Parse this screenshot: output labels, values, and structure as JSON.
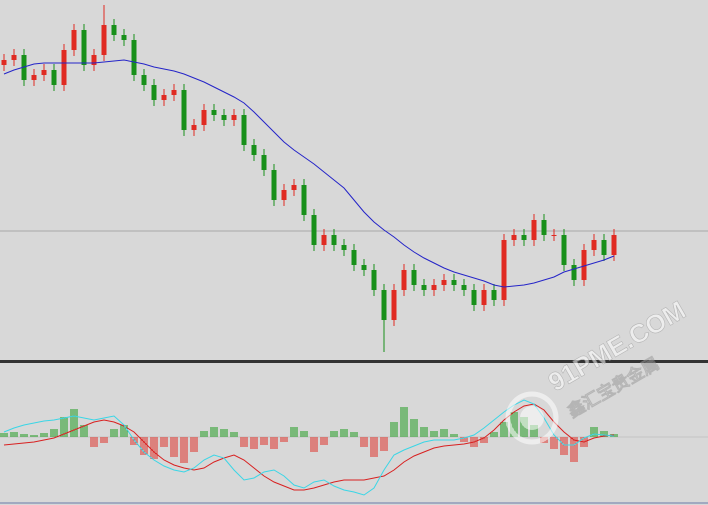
{
  "chart_data": [
    {
      "type": "candlestick",
      "ylim": [
        0,
        360
      ],
      "ref_line": 129,
      "ref_color": "#a8a8a8",
      "up_color": "#e02a22",
      "down_color": "#18901a",
      "open": [
        295,
        300,
        305,
        280,
        285,
        290,
        275,
        310,
        330,
        295,
        305,
        335,
        325,
        320,
        285,
        275,
        260,
        265,
        270,
        230,
        235,
        250,
        245,
        240,
        245,
        215,
        205,
        190,
        160,
        170,
        175,
        145,
        115,
        125,
        115,
        110,
        95,
        90,
        70,
        40,
        70,
        90,
        75,
        70,
        75,
        80,
        75,
        70,
        55,
        70,
        60,
        120,
        125,
        120,
        140,
        125,
        125,
        95,
        80,
        110,
        120,
        105
      ],
      "high": [
        306,
        311,
        311,
        291,
        296,
        296,
        316,
        336,
        336,
        311,
        355,
        341,
        331,
        326,
        291,
        281,
        271,
        276,
        276,
        241,
        256,
        256,
        251,
        251,
        251,
        221,
        211,
        196,
        176,
        181,
        181,
        151,
        131,
        131,
        121,
        116,
        101,
        96,
        76,
        76,
        96,
        96,
        81,
        81,
        86,
        86,
        81,
        76,
        76,
        76,
        126,
        131,
        131,
        146,
        146,
        131,
        131,
        101,
        116,
        126,
        126,
        131
      ],
      "low": [
        289,
        294,
        274,
        274,
        279,
        269,
        269,
        304,
        289,
        289,
        299,
        319,
        314,
        279,
        269,
        254,
        254,
        259,
        224,
        224,
        229,
        239,
        234,
        234,
        209,
        199,
        184,
        154,
        154,
        164,
        139,
        109,
        109,
        109,
        104,
        89,
        84,
        64,
        8,
        34,
        64,
        69,
        64,
        64,
        69,
        69,
        64,
        49,
        49,
        54,
        54,
        114,
        114,
        114,
        119,
        119,
        89,
        74,
        74,
        104,
        99,
        99
      ],
      "close": [
        300,
        305,
        280,
        285,
        290,
        275,
        310,
        330,
        295,
        305,
        335,
        325,
        320,
        285,
        275,
        260,
        265,
        270,
        230,
        235,
        250,
        245,
        240,
        245,
        215,
        205,
        190,
        160,
        170,
        175,
        145,
        115,
        125,
        115,
        110,
        95,
        90,
        70,
        40,
        70,
        90,
        75,
        70,
        75,
        80,
        75,
        70,
        55,
        70,
        60,
        120,
        125,
        120,
        140,
        125,
        125,
        95,
        80,
        110,
        120,
        105,
        125
      ],
      "series": [
        {
          "color": "#2424c8",
          "values": [
            286,
            290,
            293,
            296,
            297,
            297,
            297,
            297,
            297,
            297,
            298,
            299,
            300,
            298,
            296,
            293,
            291,
            289,
            286,
            282,
            278,
            273,
            268,
            263,
            257,
            248,
            238,
            228,
            218,
            210,
            203,
            196,
            188,
            180,
            172,
            160,
            148,
            138,
            130,
            123,
            115,
            108,
            102,
            97,
            92,
            88,
            85,
            82,
            79,
            75,
            73,
            74,
            75,
            77,
            80,
            83,
            88,
            91,
            94,
            97,
            100,
            104
          ]
        }
      ]
    },
    {
      "type": "macd",
      "ylim": [
        -68,
        70
      ],
      "zero_color": "#b0b0b0",
      "up_color": "#1a9a1a",
      "down_color": "#e02a22",
      "histogram": [
        4,
        5,
        3,
        2,
        4,
        8,
        20,
        28,
        12,
        -10,
        -6,
        8,
        12,
        -8,
        -18,
        -22,
        -10,
        -20,
        -26,
        -15,
        6,
        10,
        8,
        5,
        -10,
        -12,
        -8,
        -12,
        -5,
        10,
        6,
        -15,
        -8,
        6,
        8,
        5,
        -10,
        -20,
        -14,
        15,
        30,
        18,
        10,
        6,
        8,
        3,
        -5,
        -10,
        -6,
        5,
        15,
        25,
        20,
        12,
        -6,
        -12,
        -18,
        -25,
        -10,
        10,
        6,
        3
      ],
      "series": [
        {
          "color": "#d82020",
          "values": [
            -8,
            -7,
            -6,
            -5,
            -3,
            -1,
            3,
            7,
            11,
            15,
            17,
            15,
            11,
            5,
            -5,
            -15,
            -23,
            -28,
            -31,
            -33,
            -31,
            -25,
            -21,
            -18,
            -23,
            -31,
            -39,
            -45,
            -49,
            -53,
            -53,
            -51,
            -48,
            -45,
            -43,
            -43,
            -43,
            -41,
            -39,
            -33,
            -25,
            -19,
            -15,
            -11,
            -9,
            -8,
            -7,
            -5,
            -1,
            7,
            17,
            25,
            31,
            33,
            27,
            15,
            5,
            -3,
            -5,
            -1,
            1,
            2
          ]
        },
        {
          "color": "#3ad6e6",
          "values": [
            5,
            9,
            12,
            14,
            16,
            17,
            19,
            21,
            19,
            17,
            19,
            21,
            12,
            -3,
            -15,
            -23,
            -29,
            -33,
            -35,
            -31,
            -23,
            -18,
            -21,
            -33,
            -43,
            -41,
            -35,
            -33,
            -39,
            -48,
            -51,
            -45,
            -43,
            -49,
            -53,
            -55,
            -58,
            -51,
            -33,
            -18,
            -13,
            -9,
            -5,
            -3,
            -3,
            -3,
            -1,
            2,
            9,
            17,
            25,
            32,
            37,
            33,
            19,
            2,
            -8,
            -8,
            -1,
            3,
            2,
            1
          ]
        }
      ]
    }
  ],
  "watermark": {
    "text": "91PME.COM",
    "subtext": "鑫汇宝贵金属"
  }
}
